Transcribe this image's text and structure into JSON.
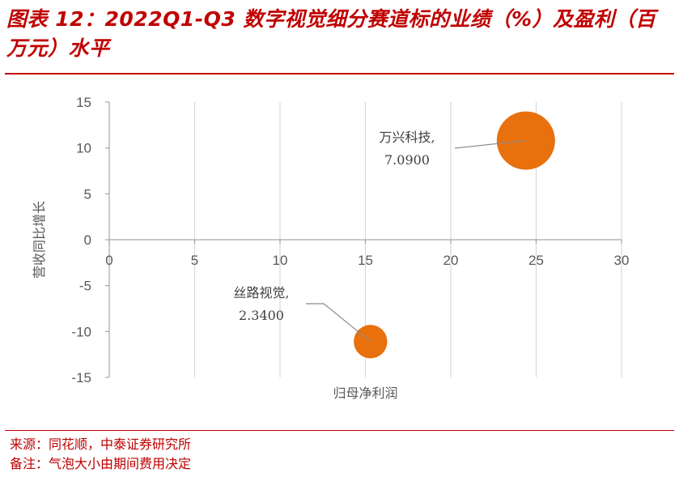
{
  "header": {
    "title": "图表 12：2022Q1-Q3 数字视觉细分赛道标的业绩（%）及盈利（百万元）水平"
  },
  "footer": {
    "source": "来源：同花顺，中泰证券研究所",
    "remark": "备注：气泡大小由期间费用决定"
  },
  "colors": {
    "accent": "#c00000",
    "bubble": "#e8700d",
    "grid": "#d9d9d9",
    "axis": "#a6a6a6"
  },
  "chart_data": {
    "type": "scatter",
    "xlabel": "归母净利润",
    "ylabel": "营收同比增长",
    "xlim": [
      0,
      30
    ],
    "ylim": [
      -15,
      15
    ],
    "xticks": [
      0,
      5,
      10,
      15,
      20,
      25,
      30
    ],
    "yticks": [
      15,
      10,
      5,
      0,
      -5,
      -10,
      -15
    ],
    "grid": "vertical",
    "points": [
      {
        "name": "万兴科技",
        "value_label": "7.0900",
        "x": 24.4,
        "y": 10.8,
        "size": 7.09
      },
      {
        "name": "丝路视觉",
        "value_label": "2.3400",
        "x": 15.3,
        "y": -11.1,
        "size": 2.34
      }
    ]
  }
}
